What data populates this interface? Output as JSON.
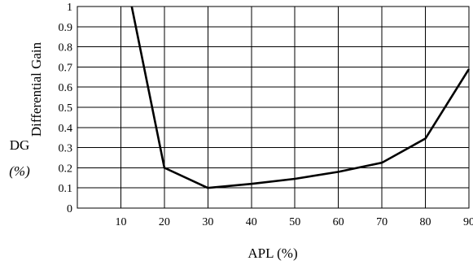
{
  "chart_data": {
    "type": "line",
    "title": "",
    "xlabel": "APL (%)",
    "ylabel": "Differential Gain",
    "ylabel_left_lines": [
      "DG",
      "(%)"
    ],
    "xlim": [
      0,
      90
    ],
    "ylim": [
      0,
      1
    ],
    "x_ticks": [
      10,
      20,
      30,
      40,
      50,
      60,
      70,
      80,
      90
    ],
    "y_ticks": [
      0,
      0.1,
      0.2,
      0.3,
      0.4,
      0.5,
      0.6,
      0.7,
      0.8,
      0.9,
      1
    ],
    "x_tick_labels": [
      "10",
      "20",
      "30",
      "40",
      "50",
      "60",
      "70",
      "80",
      "90"
    ],
    "y_tick_labels": [
      "0",
      "0.1",
      "0.2",
      "0.3",
      "0.4",
      "0.5",
      "0.6",
      "0.7",
      "0.8",
      "0.9",
      "1"
    ],
    "grid": true,
    "series": [
      {
        "x": [
          12.5,
          20,
          30,
          40,
          50,
          60,
          70,
          80,
          90
        ],
        "y": [
          1.0,
          0.2,
          0.1,
          0.12,
          0.145,
          0.18,
          0.225,
          0.345,
          0.69
        ]
      }
    ]
  }
}
